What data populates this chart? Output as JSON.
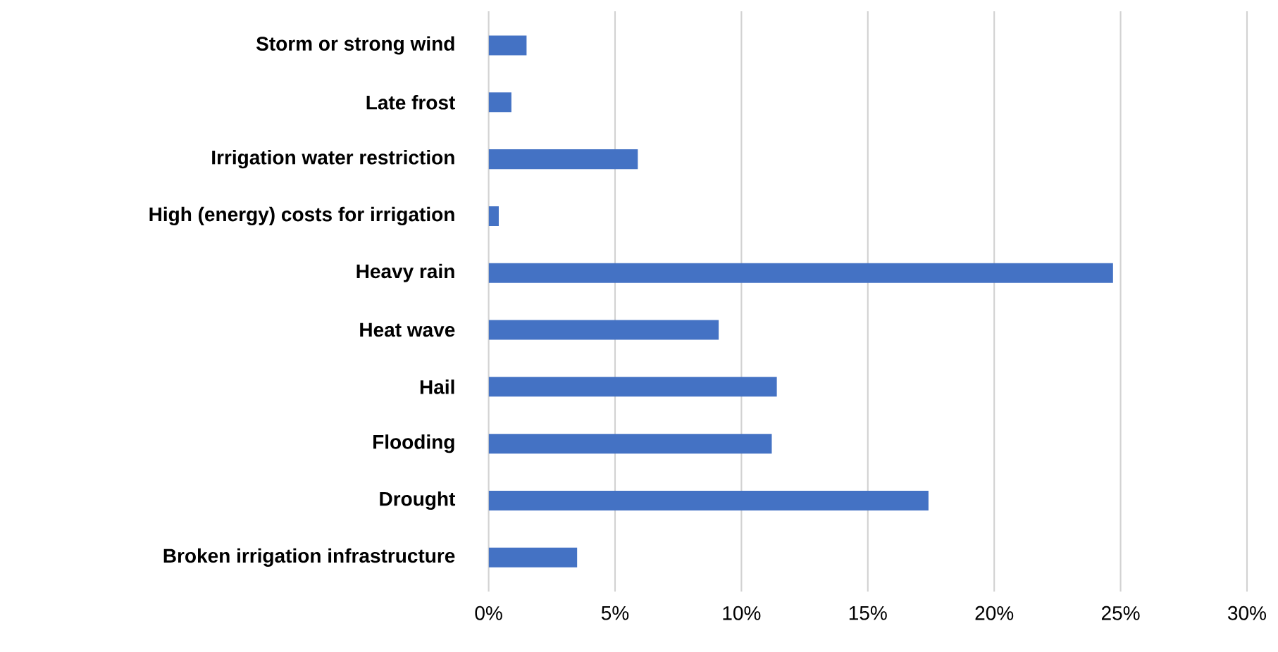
{
  "chart_data": {
    "type": "bar",
    "orientation": "horizontal",
    "categories": [
      "Storm or strong wind",
      "Late frost",
      "Irrigation water restriction",
      "High (energy) costs for irrigation",
      "Heavy rain",
      "Heat wave",
      "Hail",
      "Flooding",
      "Drought",
      "Broken irrigation infrastructure"
    ],
    "values": [
      1.5,
      0.9,
      5.9,
      0.4,
      24.7,
      9.1,
      11.4,
      11.2,
      17.4,
      3.5
    ],
    "color": "#4472c4",
    "xlim": [
      0,
      30
    ],
    "xticks": [
      {
        "value": 0,
        "label": "0%"
      },
      {
        "value": 5,
        "label": "5%"
      },
      {
        "value": 10,
        "label": "10%"
      },
      {
        "value": 15,
        "label": "15%"
      },
      {
        "value": 20,
        "label": "20%"
      },
      {
        "value": 25,
        "label": "25%"
      },
      {
        "value": 30,
        "label": "30%"
      }
    ],
    "grid": "x"
  }
}
